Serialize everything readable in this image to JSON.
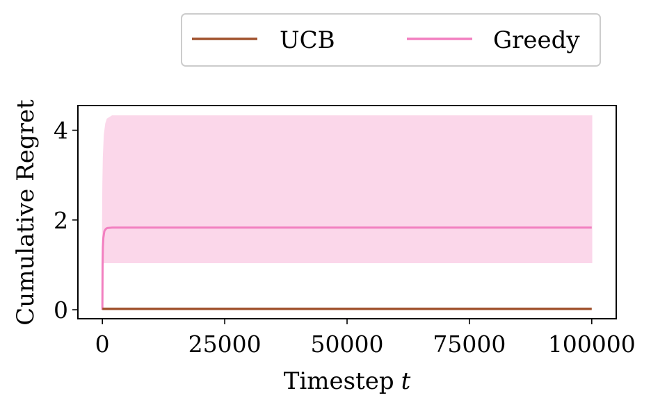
{
  "chart_data": {
    "type": "line",
    "xlabel": "Timestep",
    "xlabel_var": "t",
    "ylabel": "Cumulative Regret",
    "xlim": [
      -5000,
      105000
    ],
    "ylim": [
      -0.2,
      4.55
    ],
    "x_ticks": [
      0,
      25000,
      50000,
      75000,
      100000
    ],
    "x_tick_labels": [
      "0",
      "25000",
      "50000",
      "75000",
      "100000"
    ],
    "y_ticks": [
      0,
      2,
      4
    ],
    "y_tick_labels": [
      "0",
      "2",
      "4"
    ],
    "grid": false,
    "legend_position": "top-center, outside",
    "series": [
      {
        "name": "UCB",
        "color": "#a0522d",
        "x": [
          0,
          100000
        ],
        "y": [
          0.02,
          0.02
        ]
      },
      {
        "name": "Greedy",
        "color": "#f27fc0",
        "band_color": "#fbd7ea",
        "x": [
          0,
          50,
          100,
          200,
          400,
          700,
          1000,
          2000,
          5000,
          100000
        ],
        "y": [
          0,
          1.0,
          1.4,
          1.6,
          1.75,
          1.8,
          1.82,
          1.83,
          1.83,
          1.83
        ],
        "upper": [
          0,
          2.0,
          2.8,
          3.4,
          3.9,
          4.15,
          4.25,
          4.32,
          4.32,
          4.32
        ],
        "lower": [
          0,
          1.0,
          1.03,
          1.04,
          1.05,
          1.05,
          1.05,
          1.05,
          1.05,
          1.05
        ]
      }
    ]
  }
}
